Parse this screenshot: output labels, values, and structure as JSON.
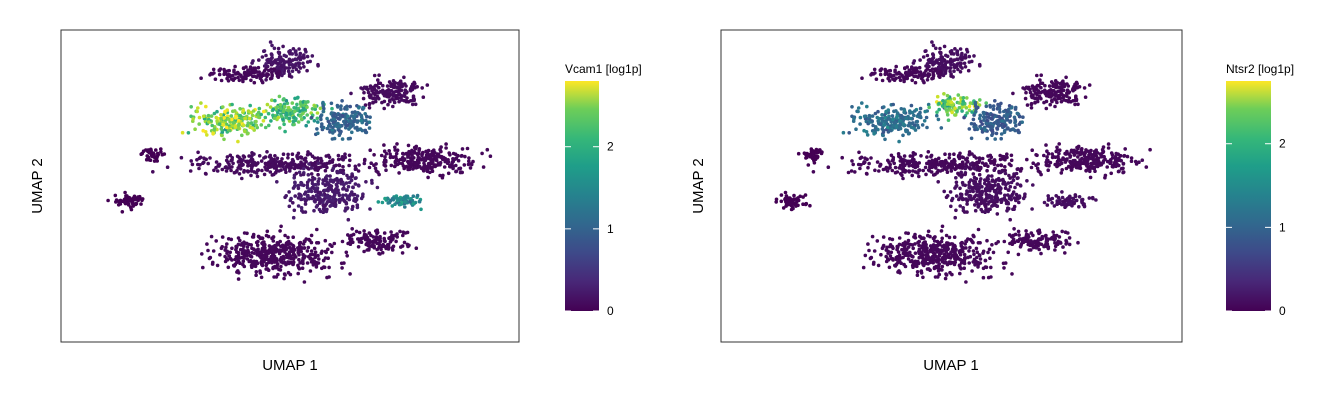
{
  "chart_data": [
    {
      "type": "scatter",
      "title": "",
      "xlabel": "UMAP 1",
      "ylabel": "UMAP 2",
      "colorbar": {
        "title": "Vcam1 [log1p]",
        "ticks": [
          "0",
          "1",
          "2"
        ],
        "tick_values": [
          0,
          1,
          2
        ],
        "range": [
          0,
          2.8
        ],
        "colormap": "viridis"
      },
      "clusters": [
        {
          "name": "top-arm-a",
          "center": [
            0.49,
            0.1
          ],
          "spread": [
            0.05,
            0.04
          ],
          "value": 0.15
        },
        {
          "name": "top-left-arm",
          "center": [
            0.4,
            0.14
          ],
          "spread": [
            0.08,
            0.02
          ],
          "value": 0.05
        },
        {
          "name": "right-arm",
          "center": [
            0.72,
            0.2
          ],
          "spread": [
            0.06,
            0.04
          ],
          "value": 0.08
        },
        {
          "name": "upper-left-lobe",
          "center": [
            0.38,
            0.29
          ],
          "spread": [
            0.08,
            0.04
          ],
          "value": 2.3
        },
        {
          "name": "upper-mid-lobe",
          "center": [
            0.51,
            0.26
          ],
          "spread": [
            0.05,
            0.04
          ],
          "value": 1.9
        },
        {
          "name": "upper-right-lobe",
          "center": [
            0.62,
            0.29
          ],
          "spread": [
            0.05,
            0.05
          ],
          "value": 0.9
        },
        {
          "name": "center-band",
          "center": [
            0.48,
            0.43
          ],
          "spread": [
            0.16,
            0.03
          ],
          "value": 0.08
        },
        {
          "name": "right-band",
          "center": [
            0.8,
            0.42
          ],
          "spread": [
            0.1,
            0.04
          ],
          "value": 0.05
        },
        {
          "name": "mid-body",
          "center": [
            0.58,
            0.52
          ],
          "spread": [
            0.07,
            0.06
          ],
          "value": 0.2
        },
        {
          "name": "mid-right-small",
          "center": [
            0.75,
            0.55
          ],
          "spread": [
            0.04,
            0.02
          ],
          "value": 1.3
        },
        {
          "name": "bottom-large",
          "center": [
            0.47,
            0.72
          ],
          "spread": [
            0.11,
            0.06
          ],
          "value": 0.05
        },
        {
          "name": "bottom-right-band",
          "center": [
            0.69,
            0.68
          ],
          "spread": [
            0.06,
            0.03
          ],
          "value": 0.05
        },
        {
          "name": "left-blob",
          "center": [
            0.15,
            0.55
          ],
          "spread": [
            0.03,
            0.02
          ],
          "value": 0.0
        },
        {
          "name": "left-small",
          "center": [
            0.2,
            0.4
          ],
          "spread": [
            0.02,
            0.02
          ],
          "value": 0.0
        }
      ]
    },
    {
      "type": "scatter",
      "title": "",
      "xlabel": "UMAP 1",
      "ylabel": "UMAP 2",
      "colorbar": {
        "title": "Ntsr2 [log1p]",
        "ticks": [
          "0",
          "1",
          "2"
        ],
        "tick_values": [
          0,
          1,
          2
        ],
        "range": [
          0,
          2.75
        ],
        "colormap": "viridis"
      },
      "clusters": [
        {
          "name": "top-arm-a",
          "center": [
            0.49,
            0.1
          ],
          "spread": [
            0.05,
            0.04
          ],
          "value": 0.1
        },
        {
          "name": "top-left-arm",
          "center": [
            0.4,
            0.14
          ],
          "spread": [
            0.08,
            0.02
          ],
          "value": 0.05
        },
        {
          "name": "right-arm",
          "center": [
            0.72,
            0.2
          ],
          "spread": [
            0.06,
            0.04
          ],
          "value": 0.05
        },
        {
          "name": "upper-left-lobe",
          "center": [
            0.38,
            0.29
          ],
          "spread": [
            0.08,
            0.04
          ],
          "value": 1.0
        },
        {
          "name": "upper-mid-lobe",
          "center": [
            0.51,
            0.24
          ],
          "spread": [
            0.04,
            0.03
          ],
          "value": 2.1
        },
        {
          "name": "upper-right-lobe",
          "center": [
            0.6,
            0.29
          ],
          "spread": [
            0.05,
            0.05
          ],
          "value": 0.8
        },
        {
          "name": "center-band",
          "center": [
            0.48,
            0.43
          ],
          "spread": [
            0.16,
            0.03
          ],
          "value": 0.05
        },
        {
          "name": "right-band",
          "center": [
            0.8,
            0.42
          ],
          "spread": [
            0.1,
            0.04
          ],
          "value": 0.05
        },
        {
          "name": "mid-body",
          "center": [
            0.58,
            0.52
          ],
          "spread": [
            0.07,
            0.06
          ],
          "value": 0.1
        },
        {
          "name": "mid-right-small",
          "center": [
            0.75,
            0.55
          ],
          "spread": [
            0.04,
            0.02
          ],
          "value": 0.1
        },
        {
          "name": "bottom-large",
          "center": [
            0.47,
            0.72
          ],
          "spread": [
            0.11,
            0.06
          ],
          "value": 0.05
        },
        {
          "name": "bottom-right-band",
          "center": [
            0.69,
            0.68
          ],
          "spread": [
            0.06,
            0.03
          ],
          "value": 0.05
        },
        {
          "name": "left-blob",
          "center": [
            0.15,
            0.55
          ],
          "spread": [
            0.03,
            0.02
          ],
          "value": 0.0
        },
        {
          "name": "left-small",
          "center": [
            0.2,
            0.4
          ],
          "spread": [
            0.02,
            0.02
          ],
          "value": 0.0
        }
      ]
    }
  ]
}
